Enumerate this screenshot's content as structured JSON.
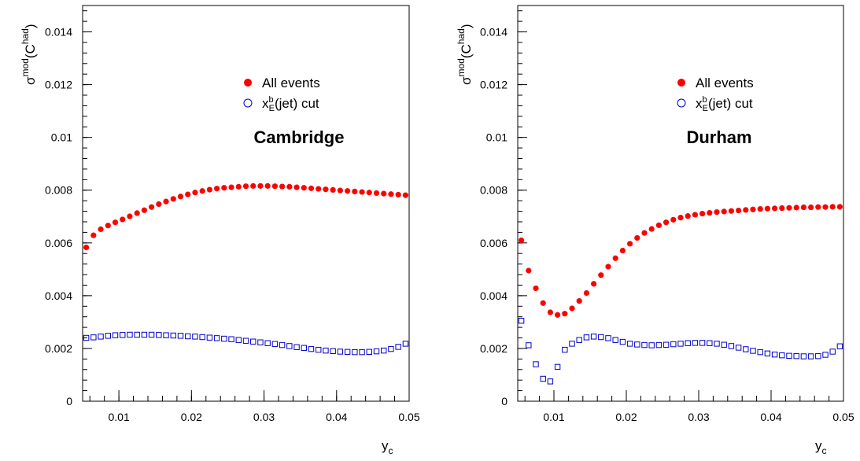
{
  "colors": {
    "all_events": "#ff0000",
    "xe_cut": "#0000cc",
    "axis": "#000000"
  },
  "chart_data": [
    {
      "type": "scatter",
      "title": "Cambridge",
      "xlabel": "y",
      "xlabel_sub": "c",
      "ylabel": {
        "main": "σ",
        "sup": "mod",
        "open": "(C",
        "sup2": "had",
        "close": ")"
      },
      "xlim": [
        0.005,
        0.05
      ],
      "ylim": [
        0,
        0.015
      ],
      "grid": false,
      "legend_position": "upper-middle",
      "x_ticks": [
        0.01,
        0.02,
        0.03,
        0.04,
        0.05
      ],
      "x_tick_labels": [
        "0.01",
        "0.02",
        "0.03",
        "0.04",
        "0.05"
      ],
      "y_ticks": [
        0,
        0.002,
        0.004,
        0.006,
        0.008,
        0.01,
        0.012,
        0.014
      ],
      "y_tick_labels": [
        "0",
        "0.002",
        "0.004",
        "0.006",
        "0.008",
        "0.01",
        "0.012",
        "0.014"
      ],
      "series": [
        {
          "name": "All events",
          "marker": "filled-circle",
          "x": [
            0.0055,
            0.0065,
            0.0075,
            0.0085,
            0.0095,
            0.0105,
            0.0115,
            0.0125,
            0.0135,
            0.0145,
            0.0155,
            0.0165,
            0.0175,
            0.0185,
            0.0195,
            0.0205,
            0.0215,
            0.0225,
            0.0235,
            0.0245,
            0.0255,
            0.0265,
            0.0275,
            0.0285,
            0.0295,
            0.0305,
            0.0315,
            0.0325,
            0.0335,
            0.0345,
            0.0355,
            0.0365,
            0.0375,
            0.0385,
            0.0395,
            0.0405,
            0.0415,
            0.0425,
            0.0435,
            0.0445,
            0.0455,
            0.0465,
            0.0475,
            0.0485,
            0.0495
          ],
          "y": [
            0.00583,
            0.00629,
            0.00652,
            0.00666,
            0.00678,
            0.00689,
            0.00701,
            0.00713,
            0.00724,
            0.00736,
            0.00747,
            0.00757,
            0.00767,
            0.00776,
            0.00784,
            0.00791,
            0.00797,
            0.00802,
            0.00806,
            0.00809,
            0.00811,
            0.00813,
            0.00815,
            0.00816,
            0.00816,
            0.00816,
            0.00815,
            0.00814,
            0.00813,
            0.00811,
            0.00809,
            0.00807,
            0.00805,
            0.00803,
            0.00801,
            0.00799,
            0.00797,
            0.00795,
            0.00793,
            0.00791,
            0.00789,
            0.00787,
            0.00785,
            0.00783,
            0.00781
          ]
        },
        {
          "name": "x",
          "name_sup": "b",
          "name_sub": "E",
          "name_rest": "(jet) cut",
          "marker": "open-square",
          "x": [
            0.0055,
            0.0065,
            0.0075,
            0.0085,
            0.0095,
            0.0105,
            0.0115,
            0.0125,
            0.0135,
            0.0145,
            0.0155,
            0.0165,
            0.0175,
            0.0185,
            0.0195,
            0.0205,
            0.0215,
            0.0225,
            0.0235,
            0.0245,
            0.0255,
            0.0265,
            0.0275,
            0.0285,
            0.0295,
            0.0305,
            0.0315,
            0.0325,
            0.0335,
            0.0345,
            0.0355,
            0.0365,
            0.0375,
            0.0385,
            0.0395,
            0.0405,
            0.0415,
            0.0425,
            0.0435,
            0.0445,
            0.0455,
            0.0465,
            0.0475,
            0.0485,
            0.0495
          ],
          "y": [
            0.0024,
            0.00242,
            0.00245,
            0.00248,
            0.0025,
            0.00251,
            0.00252,
            0.00252,
            0.00252,
            0.00252,
            0.00251,
            0.0025,
            0.00249,
            0.00248,
            0.00246,
            0.00245,
            0.00243,
            0.00241,
            0.00239,
            0.00237,
            0.00235,
            0.00232,
            0.00229,
            0.00226,
            0.00223,
            0.0022,
            0.00217,
            0.00213,
            0.00209,
            0.00205,
            0.00202,
            0.00198,
            0.00195,
            0.00192,
            0.0019,
            0.00188,
            0.00187,
            0.00186,
            0.00186,
            0.00187,
            0.00189,
            0.00192,
            0.00198,
            0.00206,
            0.00218
          ]
        }
      ]
    },
    {
      "type": "scatter",
      "title": "Durham",
      "xlabel": "y",
      "xlabel_sub": "c",
      "ylabel": {
        "main": "σ",
        "sup": "mod",
        "open": "(C",
        "sup2": "had",
        "close": ")"
      },
      "xlim": [
        0.005,
        0.05
      ],
      "ylim": [
        0,
        0.015
      ],
      "grid": false,
      "legend_position": "upper-middle",
      "x_ticks": [
        0.01,
        0.02,
        0.03,
        0.04,
        0.05
      ],
      "x_tick_labels": [
        "0.01",
        "0.02",
        "0.03",
        "0.04",
        "0.05"
      ],
      "y_ticks": [
        0,
        0.002,
        0.004,
        0.006,
        0.008,
        0.01,
        0.012,
        0.014
      ],
      "y_tick_labels": [
        "0",
        "0.002",
        "0.004",
        "0.006",
        "0.008",
        "0.01",
        "0.012",
        "0.014"
      ],
      "series": [
        {
          "name": "All events",
          "marker": "filled-circle",
          "x": [
            0.0055,
            0.0065,
            0.0075,
            0.0085,
            0.0095,
            0.0105,
            0.0115,
            0.0125,
            0.0135,
            0.0145,
            0.0155,
            0.0165,
            0.0175,
            0.0185,
            0.0195,
            0.0205,
            0.0215,
            0.0225,
            0.0235,
            0.0245,
            0.0255,
            0.0265,
            0.0275,
            0.0285,
            0.0295,
            0.0305,
            0.0315,
            0.0325,
            0.0335,
            0.0345,
            0.0355,
            0.0365,
            0.0375,
            0.0385,
            0.0395,
            0.0405,
            0.0415,
            0.0425,
            0.0435,
            0.0445,
            0.0455,
            0.0465,
            0.0475,
            0.0485,
            0.0495
          ],
          "y": [
            0.0061,
            0.00495,
            0.00428,
            0.00372,
            0.00337,
            0.00327,
            0.00332,
            0.00352,
            0.0038,
            0.0041,
            0.00445,
            0.00478,
            0.0051,
            0.00542,
            0.00571,
            0.00597,
            0.00619,
            0.00638,
            0.00653,
            0.00667,
            0.00678,
            0.00688,
            0.00696,
            0.00702,
            0.00707,
            0.00711,
            0.00714,
            0.00717,
            0.00719,
            0.00721,
            0.00723,
            0.00725,
            0.00727,
            0.00729,
            0.0073,
            0.00731,
            0.00732,
            0.00733,
            0.00734,
            0.00735,
            0.00735,
            0.00736,
            0.00736,
            0.00737,
            0.00737
          ]
        },
        {
          "name": "x",
          "name_sup": "b",
          "name_sub": "E",
          "name_rest": "(jet) cut",
          "marker": "open-square",
          "x": [
            0.0055,
            0.0065,
            0.0075,
            0.0085,
            0.0095,
            0.0105,
            0.0115,
            0.0125,
            0.0135,
            0.0145,
            0.0155,
            0.0165,
            0.0175,
            0.0185,
            0.0195,
            0.0205,
            0.0215,
            0.0225,
            0.0235,
            0.0245,
            0.0255,
            0.0265,
            0.0275,
            0.0285,
            0.0295,
            0.0305,
            0.0315,
            0.0325,
            0.0335,
            0.0345,
            0.0355,
            0.0365,
            0.0375,
            0.0385,
            0.0395,
            0.0405,
            0.0415,
            0.0425,
            0.0435,
            0.0445,
            0.0455,
            0.0465,
            0.0475,
            0.0485,
            0.0495
          ],
          "y": [
            0.00305,
            0.00212,
            0.0014,
            0.00085,
            0.00075,
            0.0013,
            0.00195,
            0.00218,
            0.00232,
            0.00242,
            0.00245,
            0.00243,
            0.00239,
            0.00232,
            0.00225,
            0.00218,
            0.00215,
            0.00213,
            0.00212,
            0.00213,
            0.00214,
            0.00216,
            0.00218,
            0.0022,
            0.00221,
            0.00221,
            0.0022,
            0.00218,
            0.00214,
            0.00209,
            0.00203,
            0.00197,
            0.00191,
            0.00186,
            0.00181,
            0.00177,
            0.00174,
            0.00172,
            0.00171,
            0.0017,
            0.0017,
            0.00171,
            0.00176,
            0.00188,
            0.00208
          ]
        }
      ]
    }
  ]
}
